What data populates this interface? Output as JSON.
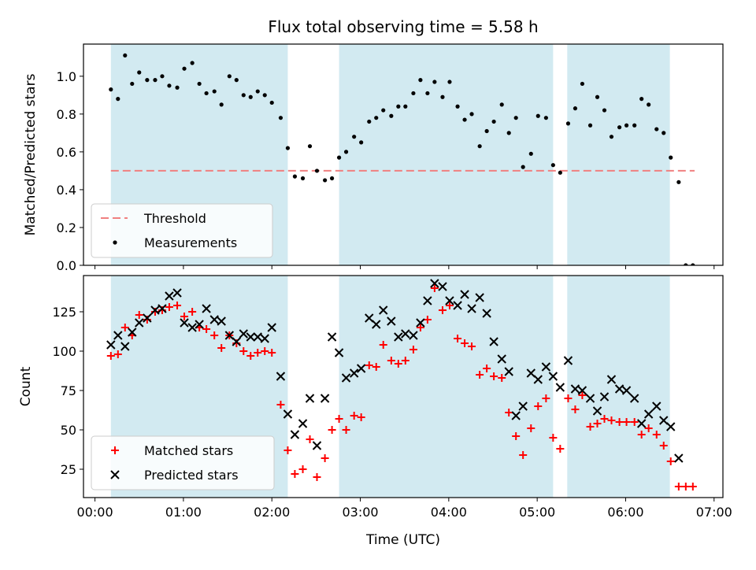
{
  "title": "Flux total observing time = 5.58 h",
  "xlabel": "Time (UTC)",
  "x_ticks": [
    "00:00",
    "01:00",
    "02:00",
    "03:00",
    "04:00",
    "05:00",
    "06:00",
    "07:00"
  ],
  "colors": {
    "shade": "#add8e6",
    "threshold": "#f08080",
    "matched": "#ff0000",
    "predicted": "#000000",
    "measurements": "#000000"
  },
  "chart_data": [
    {
      "type": "scatter",
      "ylabel": "Matched/Predicted stars",
      "ylim": [
        0,
        1.17
      ],
      "xlim_hours": [
        -0.13,
        7.1
      ],
      "y_ticks": [
        "0.0",
        "0.2",
        "0.4",
        "0.6",
        "0.8",
        "1.0"
      ],
      "shaded_intervals_hours": [
        [
          0.18,
          2.18
        ],
        [
          2.76,
          5.18
        ],
        [
          5.34,
          6.5
        ]
      ],
      "threshold": {
        "name": "Threshold",
        "value": 0.5,
        "x_range_hours": [
          0.18,
          6.78
        ]
      },
      "legend": [
        "Threshold",
        "Measurements"
      ],
      "legend_position": "lower left",
      "series": [
        {
          "name": "Measurements",
          "points": [
            [
              0.18,
              0.93
            ],
            [
              0.26,
              0.88
            ],
            [
              0.34,
              1.11
            ],
            [
              0.42,
              0.96
            ],
            [
              0.5,
              1.02
            ],
            [
              0.59,
              0.98
            ],
            [
              0.68,
              0.98
            ],
            [
              0.76,
              1.0
            ],
            [
              0.84,
              0.95
            ],
            [
              0.93,
              0.94
            ],
            [
              1.01,
              1.04
            ],
            [
              1.1,
              1.07
            ],
            [
              1.18,
              0.96
            ],
            [
              1.26,
              0.91
            ],
            [
              1.35,
              0.92
            ],
            [
              1.43,
              0.85
            ],
            [
              1.52,
              1.0
            ],
            [
              1.6,
              0.98
            ],
            [
              1.68,
              0.9
            ],
            [
              1.76,
              0.89
            ],
            [
              1.84,
              0.92
            ],
            [
              1.92,
              0.9
            ],
            [
              2.0,
              0.86
            ],
            [
              2.1,
              0.78
            ],
            [
              2.18,
              0.62
            ],
            [
              2.26,
              0.47
            ],
            [
              2.35,
              0.46
            ],
            [
              2.43,
              0.63
            ],
            [
              2.51,
              0.5
            ],
            [
              2.6,
              0.45
            ],
            [
              2.68,
              0.46
            ],
            [
              2.76,
              0.57
            ],
            [
              2.84,
              0.6
            ],
            [
              2.93,
              0.68
            ],
            [
              3.01,
              0.65
            ],
            [
              3.1,
              0.76
            ],
            [
              3.18,
              0.78
            ],
            [
              3.26,
              0.82
            ],
            [
              3.35,
              0.79
            ],
            [
              3.43,
              0.84
            ],
            [
              3.51,
              0.84
            ],
            [
              3.6,
              0.91
            ],
            [
              3.68,
              0.98
            ],
            [
              3.76,
              0.91
            ],
            [
              3.84,
              0.97
            ],
            [
              3.93,
              0.89
            ],
            [
              4.01,
              0.97
            ],
            [
              4.1,
              0.84
            ],
            [
              4.18,
              0.77
            ],
            [
              4.26,
              0.8
            ],
            [
              4.35,
              0.63
            ],
            [
              4.43,
              0.71
            ],
            [
              4.51,
              0.76
            ],
            [
              4.6,
              0.85
            ],
            [
              4.68,
              0.7
            ],
            [
              4.76,
              0.78
            ],
            [
              4.84,
              0.52
            ],
            [
              4.93,
              0.59
            ],
            [
              5.01,
              0.79
            ],
            [
              5.1,
              0.78
            ],
            [
              5.18,
              0.53
            ],
            [
              5.26,
              0.49
            ],
            [
              5.35,
              0.75
            ],
            [
              5.43,
              0.83
            ],
            [
              5.51,
              0.96
            ],
            [
              5.6,
              0.74
            ],
            [
              5.68,
              0.89
            ],
            [
              5.76,
              0.82
            ],
            [
              5.84,
              0.68
            ],
            [
              5.93,
              0.73
            ],
            [
              6.01,
              0.74
            ],
            [
              6.1,
              0.74
            ],
            [
              6.18,
              0.88
            ],
            [
              6.26,
              0.85
            ],
            [
              6.35,
              0.72
            ],
            [
              6.43,
              0.7
            ],
            [
              6.51,
              0.57
            ],
            [
              6.6,
              0.44
            ],
            [
              6.68,
              0.0
            ],
            [
              6.76,
              0.0
            ]
          ]
        }
      ]
    },
    {
      "type": "scatter",
      "ylabel": "Count",
      "ylim": [
        7,
        148
      ],
      "xlim_hours": [
        -0.13,
        7.1
      ],
      "y_ticks": [
        "25",
        "50",
        "75",
        "100",
        "125"
      ],
      "shaded_intervals_hours": [
        [
          0.18,
          2.18
        ],
        [
          2.76,
          5.18
        ],
        [
          5.34,
          6.5
        ]
      ],
      "legend": [
        "Matched stars",
        "Predicted stars"
      ],
      "legend_position": "lower left",
      "series": [
        {
          "name": "Matched stars",
          "marker": "+",
          "points": [
            [
              0.18,
              97
            ],
            [
              0.26,
              98
            ],
            [
              0.34,
              115
            ],
            [
              0.42,
              110
            ],
            [
              0.5,
              123
            ],
            [
              0.59,
              120
            ],
            [
              0.68,
              125
            ],
            [
              0.76,
              126
            ],
            [
              0.84,
              128
            ],
            [
              0.93,
              129
            ],
            [
              1.01,
              122
            ],
            [
              1.1,
              125
            ],
            [
              1.18,
              115
            ],
            [
              1.26,
              114
            ],
            [
              1.35,
              110
            ],
            [
              1.43,
              102
            ],
            [
              1.52,
              110
            ],
            [
              1.6,
              105
            ],
            [
              1.68,
              100
            ],
            [
              1.76,
              97
            ],
            [
              1.84,
              99
            ],
            [
              1.92,
              100
            ],
            [
              2.0,
              99
            ],
            [
              2.1,
              66
            ],
            [
              2.18,
              37
            ],
            [
              2.26,
              22
            ],
            [
              2.35,
              25
            ],
            [
              2.43,
              44
            ],
            [
              2.51,
              20
            ],
            [
              2.6,
              32
            ],
            [
              2.68,
              50
            ],
            [
              2.76,
              57
            ],
            [
              2.84,
              50
            ],
            [
              2.93,
              59
            ],
            [
              3.01,
              58
            ],
            [
              3.1,
              91
            ],
            [
              3.18,
              90
            ],
            [
              3.26,
              104
            ],
            [
              3.35,
              94
            ],
            [
              3.43,
              92
            ],
            [
              3.51,
              94
            ],
            [
              3.6,
              101
            ],
            [
              3.68,
              115
            ],
            [
              3.76,
              120
            ],
            [
              3.84,
              140
            ],
            [
              3.93,
              126
            ],
            [
              4.01,
              129
            ],
            [
              4.1,
              108
            ],
            [
              4.18,
              105
            ],
            [
              4.26,
              103
            ],
            [
              4.35,
              85
            ],
            [
              4.43,
              89
            ],
            [
              4.51,
              84
            ],
            [
              4.6,
              83
            ],
            [
              4.68,
              61
            ],
            [
              4.76,
              46
            ],
            [
              4.84,
              34
            ],
            [
              4.93,
              51
            ],
            [
              5.01,
              65
            ],
            [
              5.1,
              70
            ],
            [
              5.18,
              45
            ],
            [
              5.26,
              38
            ],
            [
              5.35,
              70
            ],
            [
              5.43,
              63
            ],
            [
              5.51,
              72
            ],
            [
              5.6,
              52
            ],
            [
              5.68,
              54
            ],
            [
              5.76,
              57
            ],
            [
              5.84,
              56
            ],
            [
              5.93,
              55
            ],
            [
              6.01,
              55
            ],
            [
              6.1,
              55
            ],
            [
              6.18,
              47
            ],
            [
              6.26,
              51
            ],
            [
              6.35,
              47
            ],
            [
              6.43,
              40
            ],
            [
              6.51,
              30
            ],
            [
              6.6,
              14
            ],
            [
              6.68,
              14
            ],
            [
              6.76,
              14
            ]
          ]
        },
        {
          "name": "Predicted stars",
          "marker": "x",
          "points": [
            [
              0.18,
              104
            ],
            [
              0.26,
              110
            ],
            [
              0.34,
              103
            ],
            [
              0.42,
              112
            ],
            [
              0.5,
              118
            ],
            [
              0.59,
              121
            ],
            [
              0.68,
              126
            ],
            [
              0.76,
              127
            ],
            [
              0.84,
              135
            ],
            [
              0.93,
              137
            ],
            [
              1.01,
              118
            ],
            [
              1.1,
              115
            ],
            [
              1.18,
              117
            ],
            [
              1.26,
              127
            ],
            [
              1.35,
              120
            ],
            [
              1.43,
              119
            ],
            [
              1.52,
              110
            ],
            [
              1.6,
              106
            ],
            [
              1.68,
              111
            ],
            [
              1.76,
              109
            ],
            [
              1.84,
              109
            ],
            [
              1.92,
              108
            ],
            [
              2.0,
              115
            ],
            [
              2.1,
              84
            ],
            [
              2.18,
              60
            ],
            [
              2.26,
              47
            ],
            [
              2.35,
              54
            ],
            [
              2.43,
              70
            ],
            [
              2.51,
              40
            ],
            [
              2.6,
              70
            ],
            [
              2.68,
              109
            ],
            [
              2.76,
              99
            ],
            [
              2.84,
              83
            ],
            [
              2.93,
              86
            ],
            [
              3.01,
              89
            ],
            [
              3.1,
              121
            ],
            [
              3.18,
              117
            ],
            [
              3.26,
              126
            ],
            [
              3.35,
              119
            ],
            [
              3.43,
              109
            ],
            [
              3.51,
              111
            ],
            [
              3.6,
              110
            ],
            [
              3.68,
              118
            ],
            [
              3.76,
              132
            ],
            [
              3.84,
              143
            ],
            [
              3.93,
              141
            ],
            [
              4.01,
              132
            ],
            [
              4.1,
              129
            ],
            [
              4.18,
              136
            ],
            [
              4.26,
              127
            ],
            [
              4.35,
              134
            ],
            [
              4.43,
              124
            ],
            [
              4.51,
              106
            ],
            [
              4.6,
              95
            ],
            [
              4.68,
              87
            ],
            [
              4.76,
              59
            ],
            [
              4.84,
              65
            ],
            [
              4.93,
              86
            ],
            [
              5.01,
              82
            ],
            [
              5.1,
              90
            ],
            [
              5.18,
              84
            ],
            [
              5.26,
              77
            ],
            [
              5.35,
              94
            ],
            [
              5.43,
              76
            ],
            [
              5.51,
              75
            ],
            [
              5.6,
              70
            ],
            [
              5.68,
              62
            ],
            [
              5.76,
              71
            ],
            [
              5.84,
              82
            ],
            [
              5.93,
              76
            ],
            [
              6.01,
              75
            ],
            [
              6.1,
              70
            ],
            [
              6.18,
              54
            ],
            [
              6.26,
              60
            ],
            [
              6.35,
              65
            ],
            [
              6.43,
              56
            ],
            [
              6.51,
              52
            ],
            [
              6.6,
              32
            ]
          ]
        }
      ]
    }
  ]
}
